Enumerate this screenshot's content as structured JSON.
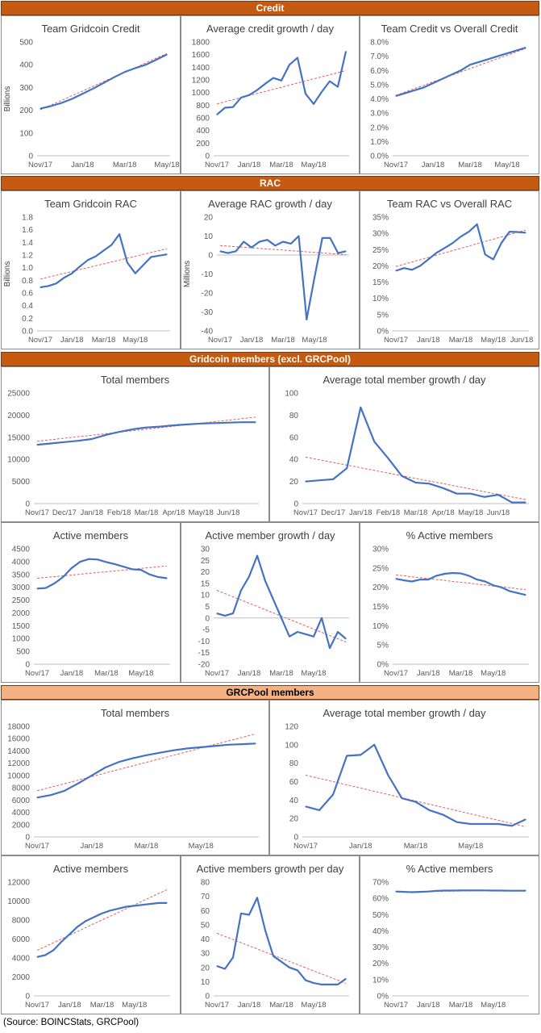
{
  "sections": [
    {
      "title": "Credit",
      "style": "dark"
    },
    {
      "title": "RAC",
      "style": "dark"
    },
    {
      "title": "Gridcoin members (excl. GRCPool)",
      "style": "dark"
    },
    {
      "title": "GRCPool members",
      "style": "light"
    }
  ],
  "source": "(Source: BOINCStats, GRCPool)",
  "colors": {
    "line": "#4472c4",
    "trend": "#e06060",
    "grid": "#d9d9d9",
    "band_dark": "#c55a11",
    "band_light": "#f4b183"
  },
  "chart_data": [
    {
      "id": "c1",
      "type": "line",
      "title": "Team Gridcoin Credit",
      "ylabel": "Billions",
      "ylim": [
        0,
        500
      ],
      "yticks": [
        "0",
        "100",
        "200",
        "300",
        "400",
        "500"
      ],
      "xlabels": [
        "Nov/17",
        "Jan/18",
        "Mar/18",
        "May/18"
      ],
      "xlabel_pos": [
        0,
        4,
        8,
        12
      ],
      "values": [
        207,
        218,
        232,
        250,
        272,
        295,
        320,
        345,
        368,
        385,
        400,
        422,
        445
      ],
      "trend": [
        202,
        223,
        243,
        264,
        284,
        305,
        326,
        346,
        367,
        387,
        408,
        429,
        449
      ]
    },
    {
      "id": "c2",
      "type": "line",
      "title": "Average credit growth / day",
      "ylim": [
        0,
        1800
      ],
      "yticks": [
        "0",
        "200",
        "400",
        "600",
        "800",
        "1000",
        "1200",
        "1400",
        "1600",
        "1800"
      ],
      "xlabels": [
        "Nov/17",
        "Jan/18",
        "Mar/18",
        "May/18"
      ],
      "xlabel_pos": [
        0,
        4,
        8,
        12
      ],
      "values": [
        650,
        760,
        770,
        920,
        960,
        1040,
        1140,
        1230,
        1190,
        1440,
        1550,
        980,
        820,
        1010,
        1180,
        1090,
        1650
      ],
      "trend": [
        820,
        853,
        886,
        919,
        952,
        985,
        1018,
        1051,
        1084,
        1117,
        1150,
        1183,
        1216,
        1249,
        1282,
        1315,
        1348
      ]
    },
    {
      "id": "c3",
      "type": "line",
      "title": "Team Credit vs Overall Credit",
      "ylim": [
        0,
        8
      ],
      "yticks": [
        "0.0%",
        "1.0%",
        "2.0%",
        "3.0%",
        "4.0%",
        "5.0%",
        "6.0%",
        "7.0%",
        "8.0%"
      ],
      "xlabels": [
        "Nov/17",
        "Jan/18",
        "Mar/18",
        "May/18"
      ],
      "xlabel_pos": [
        0,
        4,
        8,
        12
      ],
      "values": [
        4.2,
        4.4,
        4.6,
        4.8,
        5.1,
        5.4,
        5.7,
        6.0,
        6.4,
        6.6,
        6.8,
        7.0,
        7.2,
        7.4,
        7.6
      ],
      "trend": [
        4.25,
        4.48,
        4.72,
        4.95,
        5.19,
        5.42,
        5.66,
        5.89,
        6.13,
        6.36,
        6.6,
        6.83,
        7.07,
        7.3,
        7.54
      ]
    },
    {
      "id": "c4",
      "type": "line",
      "title": "Team Gridcoin RAC",
      "ylabel": "Billions",
      "ylim": [
        0,
        1.8
      ],
      "yticks": [
        "0.0",
        "0.2",
        "0.4",
        "0.6",
        "0.8",
        "1.0",
        "1.2",
        "1.4",
        "1.6",
        "1.8"
      ],
      "xlabels": [
        "Nov/17",
        "Jan/18",
        "Mar/18",
        "May/18"
      ],
      "xlabel_pos": [
        0,
        4,
        8,
        12
      ],
      "values": [
        0.69,
        0.71,
        0.75,
        0.84,
        0.91,
        1.02,
        1.12,
        1.18,
        1.27,
        1.36,
        1.53,
        1.08,
        0.91,
        1.04,
        1.17,
        1.19,
        1.21
      ],
      "trend": [
        0.82,
        0.85,
        0.88,
        0.91,
        0.94,
        0.97,
        1.0,
        1.03,
        1.06,
        1.09,
        1.12,
        1.15,
        1.18,
        1.21,
        1.24,
        1.27,
        1.3
      ]
    },
    {
      "id": "c5",
      "type": "line",
      "title": "Average RAC growth / day",
      "ylabel": "Millions",
      "ylim": [
        -40,
        20
      ],
      "yticks": [
        "-40",
        "-30",
        "-20",
        "-10",
        "0",
        "10",
        "20"
      ],
      "xlabels": [
        "Nov/17",
        "Jan/18",
        "Mar/18",
        "May/18"
      ],
      "xlabel_pos": [
        0,
        4,
        8,
        12
      ],
      "values": [
        2,
        1,
        2,
        7,
        4,
        7,
        8,
        5,
        7,
        6,
        10,
        -34,
        -12,
        9,
        9,
        1,
        2
      ],
      "trend": [
        5,
        4.7,
        4.4,
        4.1,
        3.8,
        3.5,
        3.2,
        2.9,
        2.6,
        2.3,
        2.0,
        1.7,
        1.4,
        1.1,
        0.8,
        0.5,
        0.2
      ]
    },
    {
      "id": "c6",
      "type": "line",
      "title": "Team RAC vs Overall RAC",
      "ylim": [
        0,
        35
      ],
      "yticks": [
        "0%",
        "5%",
        "10%",
        "15%",
        "20%",
        "25%",
        "30%",
        "35%"
      ],
      "xlabels": [
        "Nov/17",
        "Jan/18",
        "Mar/18",
        "May/18",
        "Jun/18"
      ],
      "xlabel_pos": [
        0,
        4,
        8,
        12,
        15.5
      ],
      "values": [
        18.5,
        19.3,
        18.8,
        20,
        22,
        24,
        25.5,
        27,
        29,
        30.5,
        32.8,
        23.5,
        22,
        27,
        30.5,
        30.4,
        30.2
      ],
      "trend": [
        19.8,
        20.5,
        21.2,
        21.9,
        22.6,
        23.3,
        24,
        24.7,
        25.4,
        26.1,
        26.8,
        27.5,
        28.2,
        28.9,
        29.6,
        30.3,
        31
      ]
    },
    {
      "id": "c7",
      "type": "line",
      "title": "Total members",
      "ylim": [
        0,
        25000
      ],
      "yticks": [
        "0",
        "5000",
        "10000",
        "15000",
        "20000",
        "25000"
      ],
      "xlabels": [
        "Nov/17",
        "Dec/17",
        "Jan/18",
        "Feb/18",
        "Mar/18",
        "Apr/18",
        "May/18",
        "Jun/18"
      ],
      "xlabel_pos": [
        0,
        2,
        4,
        6,
        8,
        10,
        12,
        14
      ],
      "values": [
        13300,
        13600,
        13900,
        14200,
        14600,
        15500,
        16200,
        16800,
        17200,
        17400,
        17700,
        17900,
        18100,
        18200,
        18300,
        18400,
        18400
      ],
      "trend": [
        14100,
        14440,
        14780,
        15120,
        15460,
        15800,
        16140,
        16480,
        16820,
        17160,
        17500,
        17840,
        18180,
        18520,
        18860,
        19200,
        19540
      ]
    },
    {
      "id": "c8",
      "type": "line",
      "title": "Average total member growth / day",
      "ylim": [
        0,
        100
      ],
      "yticks": [
        "0",
        "20",
        "40",
        "60",
        "80",
        "100"
      ],
      "xlabels": [
        "Nov/17",
        "Dec/17",
        "Jan/18",
        "Feb/18",
        "Mar/18",
        "Apr/18",
        "May/18",
        "Jun/18"
      ],
      "xlabel_pos": [
        0,
        2,
        4,
        6,
        8,
        10,
        12,
        14
      ],
      "values": [
        20,
        21,
        22,
        32,
        87,
        56,
        41,
        25,
        19,
        18,
        14,
        9,
        9,
        6,
        8,
        1,
        1
      ],
      "trend": [
        42,
        39.6,
        37.2,
        34.8,
        32.4,
        30,
        27.6,
        25.2,
        22.8,
        20.4,
        18,
        15.6,
        13.2,
        10.8,
        8.4,
        6,
        3.6
      ]
    },
    {
      "id": "c9",
      "type": "line",
      "title": "Active members",
      "ylim": [
        0,
        4500
      ],
      "yticks": [
        "0",
        "500",
        "1000",
        "1500",
        "2000",
        "2500",
        "3000",
        "3500",
        "4000",
        "4500"
      ],
      "xlabels": [
        "Nov/17",
        "Jan/18",
        "Mar/18",
        "May/18"
      ],
      "xlabel_pos": [
        0,
        4,
        8,
        12
      ],
      "values": [
        2950,
        2970,
        3150,
        3400,
        3750,
        4000,
        4100,
        4080,
        3980,
        3900,
        3800,
        3700,
        3680,
        3500,
        3400,
        3350
      ],
      "trend": [
        3350,
        3382,
        3414,
        3446,
        3478,
        3510,
        3542,
        3574,
        3606,
        3638,
        3670,
        3702,
        3734,
        3766,
        3798,
        3830
      ]
    },
    {
      "id": "c10",
      "type": "line",
      "title": "Active member growth / day",
      "ylim": [
        -20,
        30
      ],
      "yticks": [
        "-20",
        "-15",
        "-10",
        "-5",
        "0",
        "5",
        "10",
        "15",
        "20",
        "25",
        "30"
      ],
      "xlabels": [
        "Nov/17",
        "Jan/18",
        "Mar/18",
        "May/18"
      ],
      "xlabel_pos": [
        0,
        4,
        8,
        12
      ],
      "values": [
        2,
        1,
        2,
        12,
        18,
        27,
        16,
        8,
        0,
        -8,
        -6,
        -7,
        -8,
        0,
        -13,
        -6,
        -9
      ],
      "trend": [
        12,
        10.6,
        9.2,
        7.8,
        6.4,
        5,
        3.6,
        2.2,
        0.8,
        -0.6,
        -2,
        -3.4,
        -4.8,
        -6.2,
        -7.6,
        -9,
        -10.4
      ]
    },
    {
      "id": "c11",
      "type": "line",
      "title": "% Active members",
      "ylim": [
        0,
        30
      ],
      "yticks": [
        "0%",
        "5%",
        "10%",
        "15%",
        "20%",
        "25%",
        "30%"
      ],
      "xlabels": [
        "Nov/17",
        "Jan/18",
        "Mar/18",
        "May/18"
      ],
      "xlabel_pos": [
        0,
        4,
        8,
        12
      ],
      "values": [
        22.2,
        21.8,
        21.5,
        22,
        22,
        23,
        23.5,
        23.7,
        23.6,
        23,
        22,
        21.5,
        20.5,
        20,
        19,
        18.5,
        18
      ],
      "trend": [
        23.2,
        23,
        22.7,
        22.5,
        22.3,
        22,
        21.8,
        21.5,
        21.3,
        21.1,
        20.8,
        20.6,
        20.3,
        20.1,
        19.9,
        19.6,
        19.4
      ]
    },
    {
      "id": "c12",
      "type": "line",
      "title": "Total members",
      "ylim": [
        0,
        18000
      ],
      "yticks": [
        "0",
        "2000",
        "4000",
        "6000",
        "8000",
        "10000",
        "12000",
        "14000",
        "16000",
        "18000"
      ],
      "xlabels": [
        "Nov/17",
        "Jan/18",
        "Mar/18",
        "May/18"
      ],
      "xlabel_pos": [
        0,
        4,
        8,
        12
      ],
      "values": [
        6400,
        6800,
        7500,
        8700,
        10000,
        11300,
        12200,
        12800,
        13300,
        13700,
        14100,
        14400,
        14600,
        14800,
        15000,
        15100,
        15200
      ],
      "trend": [
        7500,
        8080,
        8660,
        9240,
        9820,
        10400,
        10980,
        11560,
        12140,
        12720,
        13300,
        13880,
        14460,
        15040,
        15620,
        16200,
        16780
      ]
    },
    {
      "id": "c13",
      "type": "line",
      "title": "Average total member growth / day",
      "ylim": [
        0,
        120
      ],
      "yticks": [
        "0",
        "20",
        "40",
        "60",
        "80",
        "100",
        "120"
      ],
      "xlabels": [
        "Nov/17",
        "Jan/18",
        "Mar/18",
        "May/18"
      ],
      "xlabel_pos": [
        0,
        4,
        8,
        12
      ],
      "values": [
        33,
        29,
        46,
        88,
        89,
        100,
        67,
        42,
        38,
        29,
        24,
        16,
        14,
        14,
        14,
        12,
        19
      ],
      "trend": [
        67,
        63.5,
        60,
        56.5,
        53,
        49.5,
        46,
        42.5,
        39,
        35.5,
        32,
        28.5,
        25,
        21.5,
        18,
        14.5,
        11
      ]
    },
    {
      "id": "c14",
      "type": "line",
      "title": "Active members",
      "ylim": [
        0,
        12000
      ],
      "yticks": [
        "0",
        "2000",
        "4000",
        "6000",
        "8000",
        "10000",
        "12000"
      ],
      "xlabels": [
        "Nov/17",
        "Jan/18",
        "Mar/18",
        "May/18"
      ],
      "xlabel_pos": [
        0,
        4,
        8,
        12
      ],
      "values": [
        4100,
        4300,
        4800,
        5700,
        6500,
        7300,
        7900,
        8300,
        8700,
        9000,
        9200,
        9400,
        9500,
        9600,
        9700,
        9800,
        9800
      ],
      "trend": [
        4800,
        5200,
        5600,
        6000,
        6400,
        6800,
        7200,
        7600,
        8000,
        8400,
        8800,
        9200,
        9600,
        10000,
        10400,
        10800,
        11200
      ]
    },
    {
      "id": "c15",
      "type": "line",
      "title": "Active members growth per day",
      "ylim": [
        0,
        80
      ],
      "yticks": [
        "0",
        "10",
        "20",
        "30",
        "40",
        "50",
        "60",
        "70",
        "80"
      ],
      "xlabels": [
        "Nov/17",
        "Jan/18",
        "Mar/18",
        "May/18"
      ],
      "xlabel_pos": [
        0,
        4,
        8,
        12
      ],
      "values": [
        21,
        19,
        27,
        58,
        57,
        69,
        46,
        28,
        24,
        20,
        18,
        11,
        9,
        8,
        8,
        8,
        12
      ],
      "trend": [
        44,
        41.8,
        39.6,
        37.4,
        35.2,
        33,
        30.8,
        28.6,
        26.4,
        24.2,
        22,
        19.8,
        17.6,
        15.4,
        13.2,
        11,
        8.8
      ]
    },
    {
      "id": "c16",
      "type": "line",
      "title": "% Active members",
      "ylim": [
        0,
        70
      ],
      "yticks": [
        "0%",
        "10%",
        "20%",
        "30%",
        "40%",
        "50%",
        "60%",
        "70%"
      ],
      "xlabels": [
        "Nov/17",
        "Jan/18",
        "Mar/18",
        "May/18"
      ],
      "xlabel_pos": [
        0,
        4,
        8,
        12
      ],
      "values": [
        64.2,
        64,
        63.8,
        64,
        64.2,
        64.6,
        64.8,
        64.8,
        64.9,
        64.9,
        64.9,
        64.9,
        64.8,
        64.8,
        64.7,
        64.7,
        64.7
      ],
      "trend": [
        63.9,
        64,
        64.1,
        64.2,
        64.3,
        64.3,
        64.4,
        64.5,
        64.5,
        64.6,
        64.6,
        64.7,
        64.7,
        64.8,
        64.8,
        64.9,
        64.9
      ]
    }
  ]
}
